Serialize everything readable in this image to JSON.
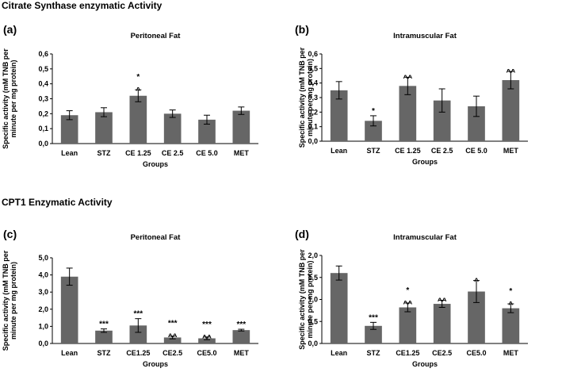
{
  "sections": [
    {
      "title": "Citrate Synthase enzymatic Activity"
    },
    {
      "title": "CPT1 Enzymatic Activity"
    }
  ],
  "chart_data": [
    {
      "type": "bar",
      "panel": "(a)",
      "title": "Peritoneal Fat",
      "xlabel": "Groups",
      "ylabel_lines": [
        "Specific activity (mM TNB per",
        "minute per mg protein)"
      ],
      "categories": [
        "Lean",
        "STZ",
        "CE 1.25",
        "CE 2.5",
        "CE 5.0",
        "MET"
      ],
      "values": [
        0.19,
        0.21,
        0.32,
        0.2,
        0.16,
        0.22
      ],
      "errors": [
        0.03,
        0.03,
        0.04,
        0.025,
        0.03,
        0.025
      ],
      "ylim": [
        0,
        0.6
      ],
      "yticks": [
        0,
        0.1,
        0.2,
        0.3,
        0.4,
        0.5,
        0.6
      ],
      "ytick_labels": [
        "0,0",
        "0,1",
        "0,2",
        "0,3",
        "0,4",
        "0,5",
        "0,6"
      ],
      "annotations": [
        "",
        "",
        "*\n^",
        "",
        "",
        ""
      ],
      "bar_color": "#666666"
    },
    {
      "type": "bar",
      "panel": "(b)",
      "title": "Intramuscular Fat",
      "xlabel": "Groups",
      "ylabel_lines": [
        "Specific activity (mM TNB per",
        "minute per mg protein)"
      ],
      "categories": [
        "Lean",
        "STZ",
        "CE 1.25",
        "CE 2.5",
        "CE 5.0",
        "MET"
      ],
      "values": [
        0.35,
        0.14,
        0.38,
        0.28,
        0.24,
        0.42
      ],
      "errors": [
        0.06,
        0.035,
        0.06,
        0.08,
        0.07,
        0.06
      ],
      "ylim": [
        0,
        0.6
      ],
      "yticks": [
        0,
        0.1,
        0.2,
        0.3,
        0.4,
        0.5,
        0.6
      ],
      "ytick_labels": [
        "0,0",
        "0,1",
        "0,2",
        "0,3",
        "0,4",
        "0,5",
        "0,6"
      ],
      "annotations": [
        "",
        "*",
        "^^",
        "",
        "",
        "^^"
      ],
      "bar_color": "#666666"
    },
    {
      "type": "bar",
      "panel": "(c)",
      "title": "Peritoneal Fat",
      "xlabel": "Groups",
      "ylabel_lines": [
        "Specific activity (mM TNB per",
        "minute per mg protein)"
      ],
      "categories": [
        "Lean",
        "STZ",
        "CE1.25",
        "CE2.5",
        "CE5.0",
        "MET"
      ],
      "values": [
        3.9,
        0.75,
        1.05,
        0.35,
        0.3,
        0.78
      ],
      "errors": [
        0.5,
        0.1,
        0.4,
        0.08,
        0.08,
        0.05
      ],
      "ylim": [
        0,
        5.0
      ],
      "yticks": [
        0,
        1,
        2,
        3,
        4,
        5
      ],
      "ytick_labels": [
        "0,0",
        "1,0",
        "2,0",
        "3,0",
        "4,0",
        "5,0"
      ],
      "annotations": [
        "",
        "***",
        "***",
        "***\n^^",
        "***\n^^",
        "***"
      ],
      "bar_color": "#666666"
    },
    {
      "type": "bar",
      "panel": "(d)",
      "title": "Intramuscular Fat",
      "xlabel": "Groups",
      "ylabel_lines": [
        "Specific activity (mM TNB per",
        "minute per mg protein)"
      ],
      "categories": [
        "Lean",
        "STZ",
        "CE1.25",
        "CE2.5",
        "CE5.0",
        "MET"
      ],
      "values": [
        1.6,
        0.4,
        0.82,
        0.9,
        1.18,
        0.8
      ],
      "errors": [
        0.16,
        0.08,
        0.1,
        0.08,
        0.25,
        0.1
      ],
      "ylim": [
        0,
        2.0
      ],
      "yticks": [
        0,
        0.5,
        1.0,
        1.5,
        2.0
      ],
      "ytick_labels": [
        "0,0",
        "0,5",
        "1,0",
        "1,5",
        "2,0"
      ],
      "annotations": [
        "",
        "***",
        "*\n^^",
        "^^",
        "^",
        "*\n^"
      ],
      "bar_color": "#666666"
    }
  ]
}
